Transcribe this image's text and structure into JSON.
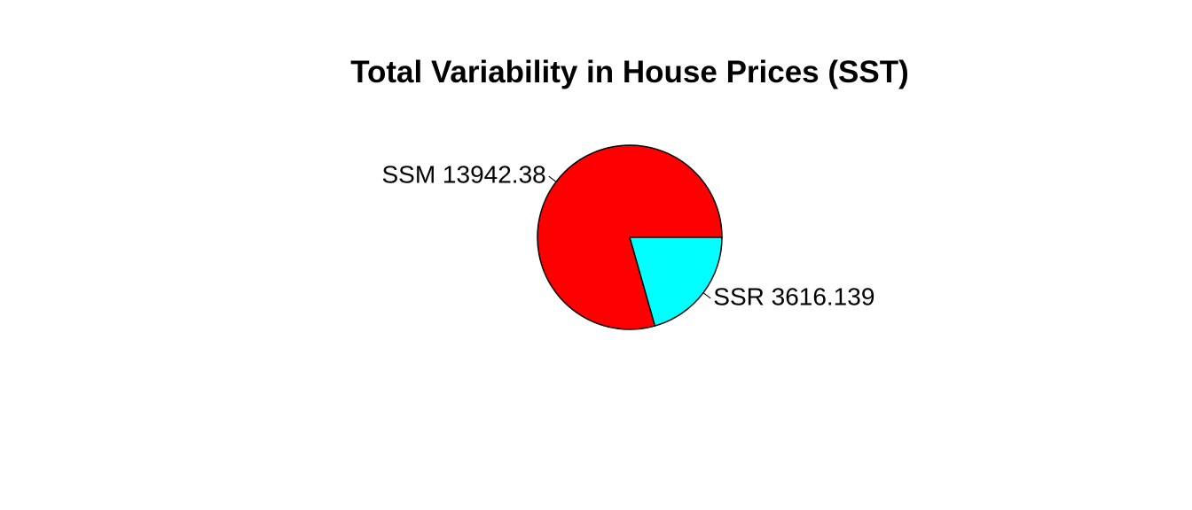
{
  "chart_data": {
    "type": "pie",
    "title": "Total Variability in House Prices (SST)",
    "slices": [
      {
        "name": "SSM",
        "value": 13942.38,
        "label": "SSM 13942.38",
        "color": "#FF0000"
      },
      {
        "name": "SSR",
        "value": 3616.139,
        "label": "SSR 3616.139",
        "color": "#00FFFF"
      }
    ],
    "start_angle_degrees": 0,
    "direction": "counterclockwise",
    "border_color": "#000000",
    "legend": "none"
  }
}
